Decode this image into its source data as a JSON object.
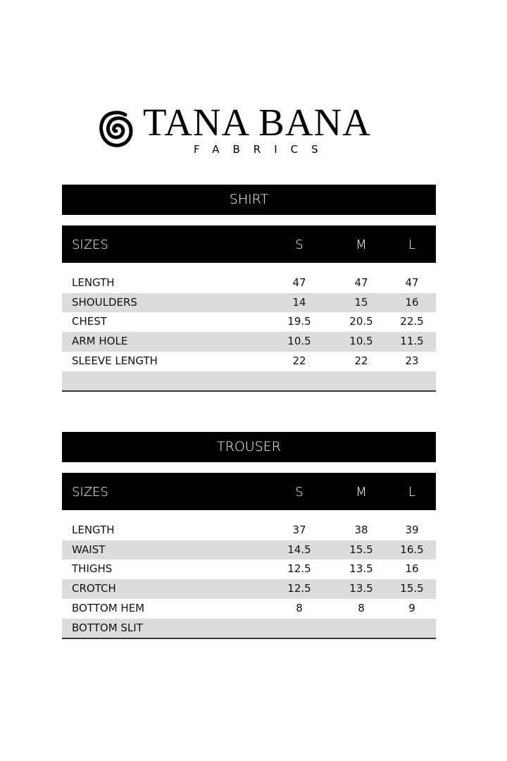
{
  "brand": {
    "name": "TANA BANA",
    "subtitle": "FABRICS"
  },
  "shirt": {
    "title": "SHIRT",
    "headers": [
      "SIZES",
      "S",
      "M",
      "L"
    ],
    "rows": [
      {
        "label": "LENGTH",
        "values": [
          "47",
          "47",
          "47"
        ]
      },
      {
        "label": "SHOULDERS",
        "values": [
          "14",
          "15",
          "16"
        ]
      },
      {
        "label": "CHEST",
        "values": [
          "19.5",
          "20.5",
          "22.5"
        ]
      },
      {
        "label": "ARM HOLE",
        "values": [
          "10.5",
          "10.5",
          "11.5"
        ]
      },
      {
        "label": "SLEEVE LENGTH",
        "values": [
          "22",
          "22",
          "23"
        ]
      },
      {
        "label": "",
        "values": [
          "",
          "",
          ""
        ]
      }
    ]
  },
  "trouser": {
    "title": "TROUSER",
    "headers": [
      "SIZES",
      "S",
      "M",
      "L"
    ],
    "rows": [
      {
        "label": "LENGTH",
        "values": [
          "37",
          "38",
          "39"
        ]
      },
      {
        "label": "WAIST",
        "values": [
          "14.5",
          "15.5",
          "16.5"
        ]
      },
      {
        "label": "THIGHS",
        "values": [
          "12.5",
          "13.5",
          "16"
        ]
      },
      {
        "label": "CROTCH",
        "values": [
          "12.5",
          "13.5",
          "15.5"
        ]
      },
      {
        "label": "BOTTOM HEM",
        "values": [
          "8",
          "8",
          "9"
        ]
      },
      {
        "label": "BOTTOM SLIT",
        "values": [
          "",
          "",
          ""
        ]
      }
    ]
  }
}
